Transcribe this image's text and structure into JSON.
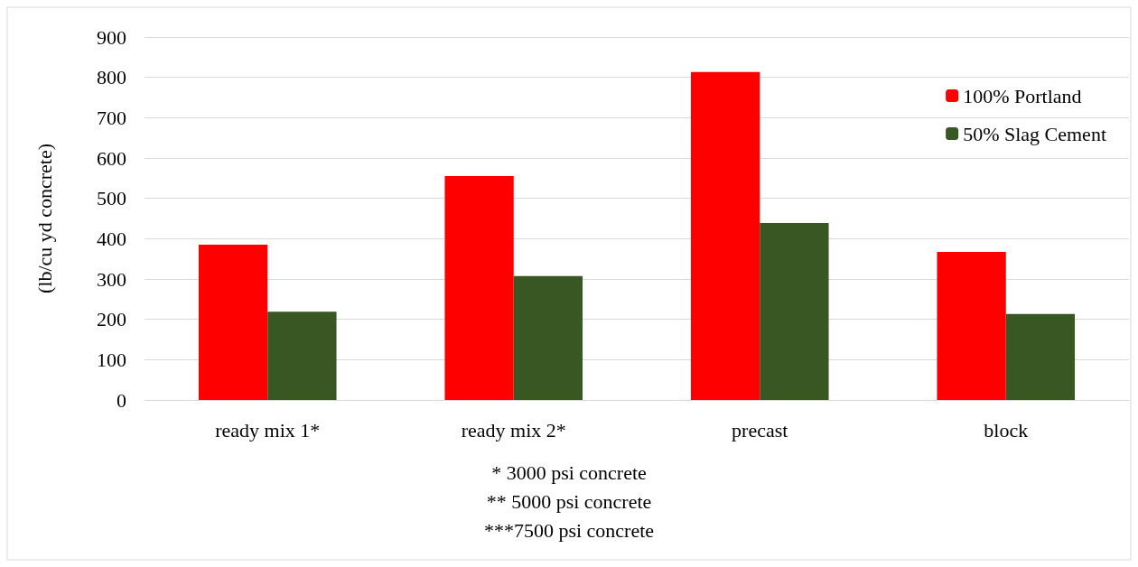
{
  "chart_data": {
    "type": "bar",
    "ylabel": "(lb/cu yd concrete)",
    "categories": [
      "ready mix 1*",
      "ready mix 2*",
      "precast",
      "block"
    ],
    "series": [
      {
        "name": "100% Portland",
        "color": "#ff0000",
        "values": [
          385,
          555,
          813,
          367
        ]
      },
      {
        "name": "50% Slag Cement",
        "color": "#385723",
        "values": [
          219,
          307,
          439,
          213
        ]
      }
    ],
    "ylim": [
      0,
      900
    ],
    "yticks": [
      0,
      100,
      200,
      300,
      400,
      500,
      600,
      700,
      800,
      900
    ],
    "grid": "y",
    "legend": "top right",
    "annotations": [
      "* 3000 psi concrete",
      "** 5000 psi concrete",
      "***7500 psi concrete"
    ]
  }
}
